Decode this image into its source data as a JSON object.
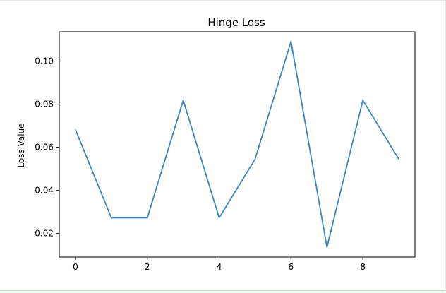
{
  "chart_data": {
    "type": "line",
    "title": "Hinge Loss",
    "xlabel": "",
    "ylabel": "Loss Value",
    "x": [
      0,
      1,
      2,
      3,
      4,
      5,
      6,
      7,
      8,
      9
    ],
    "series": [
      {
        "values": [
          0.0682,
          0.0273,
          0.0273,
          0.0818,
          0.0273,
          0.0545,
          0.1091,
          0.0136,
          0.0818,
          0.0545
        ]
      }
    ],
    "xlim": [
      -0.45,
      9.45
    ],
    "ylim": [
      0.0091,
      0.1136
    ],
    "xticks": [
      0,
      2,
      4,
      6,
      8
    ],
    "yticks": [
      0.02,
      0.04,
      0.06,
      0.08,
      0.1
    ],
    "xtick_labels": [
      "0",
      "2",
      "4",
      "6",
      "8"
    ],
    "ytick_labels": [
      "0.02",
      "0.04",
      "0.06",
      "0.08",
      "0.10"
    ],
    "line_color": "#3a86c2",
    "grid": false,
    "legend": "none"
  }
}
